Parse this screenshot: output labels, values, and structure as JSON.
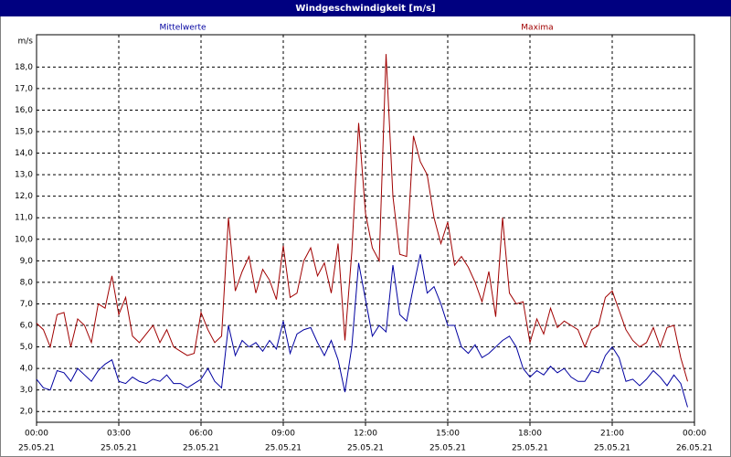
{
  "chart_data": {
    "type": "line",
    "title": "Windgeschwindigkeit [m/s]",
    "y_label": "m/s",
    "x": [
      0,
      0.25,
      0.5,
      0.75,
      1,
      1.25,
      1.5,
      1.75,
      2,
      2.25,
      2.5,
      2.75,
      3,
      3.25,
      3.5,
      3.75,
      4,
      4.25,
      4.5,
      4.75,
      5,
      5.25,
      5.5,
      5.75,
      6,
      6.25,
      6.5,
      6.75,
      7,
      7.25,
      7.5,
      7.75,
      8,
      8.25,
      8.5,
      8.75,
      9,
      9.25,
      9.5,
      9.75,
      10,
      10.25,
      10.5,
      10.75,
      11,
      11.25,
      11.5,
      11.75,
      12,
      12.25,
      12.5,
      12.75,
      13,
      13.25,
      13.5,
      13.75,
      14,
      14.25,
      14.5,
      14.75,
      15,
      15.25,
      15.5,
      15.75,
      16,
      16.25,
      16.5,
      16.75,
      17,
      17.25,
      17.5,
      17.75,
      18,
      18.25,
      18.5,
      18.75,
      19,
      19.25,
      19.5,
      19.75,
      20,
      20.25,
      20.5,
      20.75,
      21,
      21.25,
      21.5,
      21.75,
      22,
      22.25,
      22.5,
      22.75,
      23,
      23.25,
      23.5,
      23.75
    ],
    "series": [
      {
        "name": "Mittelwerte",
        "color": "#0000a0",
        "values": [
          3.5,
          3.1,
          3.0,
          3.9,
          3.8,
          3.4,
          4.0,
          3.7,
          3.4,
          3.9,
          4.2,
          4.4,
          3.4,
          3.3,
          3.6,
          3.4,
          3.3,
          3.5,
          3.4,
          3.7,
          3.3,
          3.3,
          3.1,
          3.3,
          3.5,
          4.0,
          3.4,
          3.1,
          6.0,
          4.6,
          5.3,
          5.0,
          5.2,
          4.8,
          5.3,
          4.9,
          6.2,
          4.7,
          5.6,
          5.8,
          5.9,
          5.2,
          4.6,
          5.3,
          4.4,
          2.9,
          5.0,
          8.9,
          7.2,
          5.5,
          6.0,
          5.7,
          8.8,
          6.5,
          6.2,
          7.8,
          9.3,
          7.5,
          7.8,
          7.0,
          6.0,
          6.0,
          5.0,
          4.7,
          5.1,
          4.5,
          4.7,
          5.0,
          5.3,
          5.5,
          5.0,
          4.0,
          3.6,
          3.9,
          3.7,
          4.1,
          3.8,
          4.0,
          3.6,
          3.4,
          3.4,
          3.9,
          3.8,
          4.6,
          5.0,
          4.5,
          3.4,
          3.5,
          3.2,
          3.5,
          3.9,
          3.6,
          3.2,
          3.7,
          3.3,
          2.2
        ]
      },
      {
        "name": "Maxima",
        "color": "#a00000",
        "values": [
          6.1,
          5.8,
          5.0,
          6.5,
          6.6,
          5.0,
          6.3,
          6.0,
          5.2,
          7.0,
          6.8,
          8.3,
          6.5,
          7.3,
          5.5,
          5.2,
          5.6,
          6.0,
          5.2,
          5.8,
          5.0,
          4.8,
          4.6,
          4.7,
          6.6,
          5.8,
          5.2,
          5.5,
          11.0,
          7.6,
          8.5,
          9.2,
          7.5,
          8.6,
          8.1,
          7.2,
          9.7,
          7.3,
          7.5,
          9.0,
          9.6,
          8.3,
          8.9,
          7.5,
          9.8,
          5.3,
          9.4,
          15.4,
          11.2,
          9.6,
          9.0,
          18.6,
          12.0,
          9.3,
          9.2,
          14.8,
          13.6,
          13.0,
          11.0,
          9.8,
          10.8,
          8.8,
          9.2,
          8.7,
          8.0,
          7.1,
          8.5,
          6.4,
          11.0,
          7.5,
          7.0,
          7.1,
          5.2,
          6.3,
          5.6,
          6.8,
          5.9,
          6.2,
          6.0,
          5.8,
          5.0,
          5.8,
          6.0,
          7.3,
          7.6,
          6.7,
          5.8,
          5.3,
          5.0,
          5.2,
          5.9,
          5.0,
          5.9,
          6.0,
          4.5,
          3.4
        ]
      }
    ],
    "xlim": [
      0,
      24
    ],
    "ylim": [
      1.5,
      19.5
    ],
    "xticks": [
      {
        "value": 0,
        "label": "00:00"
      },
      {
        "value": 3,
        "label": "03:00"
      },
      {
        "value": 6,
        "label": "06:00"
      },
      {
        "value": 9,
        "label": "09:00"
      },
      {
        "value": 12,
        "label": "12:00"
      },
      {
        "value": 15,
        "label": "15:00"
      },
      {
        "value": 18,
        "label": "18:00"
      },
      {
        "value": 21,
        "label": "21:00"
      },
      {
        "value": 24,
        "label": "00:00"
      }
    ],
    "xtick_dates": [
      "25.05.21",
      "25.05.21",
      "25.05.21",
      "25.05.21",
      "25.05.21",
      "25.05.21",
      "25.05.21",
      "25.05.21",
      "26.05.21"
    ],
    "yticks": [
      {
        "value": 2,
        "label": "2,0"
      },
      {
        "value": 3,
        "label": "3,0"
      },
      {
        "value": 4,
        "label": "4,0"
      },
      {
        "value": 5,
        "label": "5,0"
      },
      {
        "value": 6,
        "label": "6,0"
      },
      {
        "value": 7,
        "label": "7,0"
      },
      {
        "value": 8,
        "label": "8,0"
      },
      {
        "value": 9,
        "label": "9,0"
      },
      {
        "value": 10,
        "label": "10,0"
      },
      {
        "value": 11,
        "label": "11,0"
      },
      {
        "value": 12,
        "label": "12,0"
      },
      {
        "value": 13,
        "label": "13,0"
      },
      {
        "value": 14,
        "label": "14,0"
      },
      {
        "value": 15,
        "label": "15,0"
      },
      {
        "value": 16,
        "label": "16,0"
      },
      {
        "value": 17,
        "label": "17,0"
      },
      {
        "value": 18,
        "label": "18,0"
      }
    ],
    "grid": true
  }
}
